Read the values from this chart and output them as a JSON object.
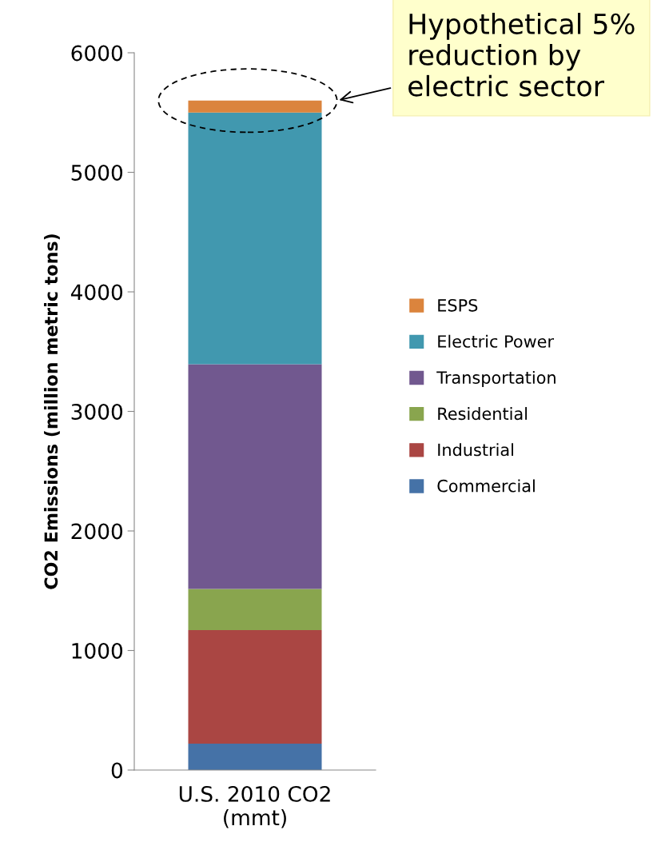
{
  "chart_data": {
    "type": "bar",
    "stacked": true,
    "ylabel": "CO2 Emissions (million metric tons)",
    "categories": [
      "U.S. 2010 CO2\n(mmt)"
    ],
    "series": [
      {
        "name": "Commercial",
        "color": "#4572a7",
        "values": [
          220
        ]
      },
      {
        "name": "Industrial",
        "color": "#aa4643",
        "values": [
          950
        ]
      },
      {
        "name": "Residential",
        "color": "#89a54e",
        "values": [
          345
        ]
      },
      {
        "name": "Transportation",
        "color": "#71588f",
        "values": [
          1880
        ]
      },
      {
        "name": "Electric Power",
        "color": "#4198af",
        "values": [
          2105
        ]
      },
      {
        "name": "ESPS",
        "color": "#db843d",
        "values": [
          100
        ]
      }
    ],
    "ylim": [
      0,
      6000
    ],
    "yticks": [
      0,
      1000,
      2000,
      3000,
      4000,
      5000,
      6000
    ],
    "grid": false,
    "legend": "right",
    "annotations": [
      "Hypothetical 5%\nreduction by\nelectric sector"
    ]
  }
}
